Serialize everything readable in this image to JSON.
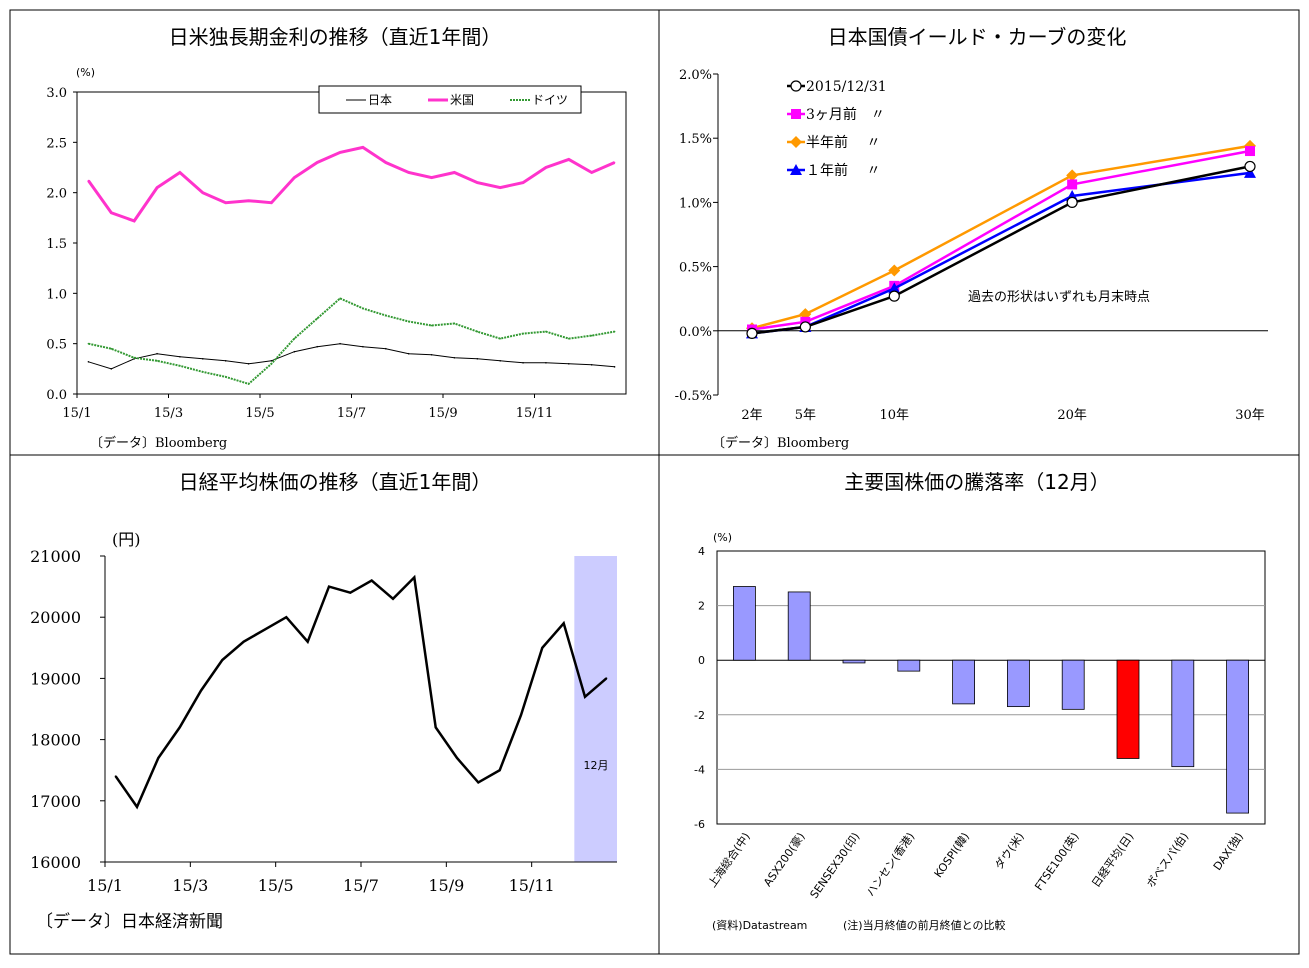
{
  "chart_data": [
    {
      "type": "line",
      "title": "日米独長期金利の推移（直近1年間）",
      "unit": "(%)",
      "source": "〔データ〕Bloomberg",
      "x_ticks": [
        "15/1",
        "15/3",
        "15/5",
        "15/7",
        "15/9",
        "15/11"
      ],
      "y_ticks": [
        "3.0",
        "2.5",
        "2.0",
        "1.5",
        "1.0",
        "0.5",
        "0.0"
      ],
      "ylim": [
        0,
        3.0
      ],
      "legend_position": "top-right",
      "series": [
        {
          "name": "日本",
          "color": "#000000",
          "x": [
            "15/1",
            "15/1",
            "15/2",
            "15/2",
            "15/3",
            "15/3",
            "15/4",
            "15/4",
            "15/5",
            "15/5",
            "15/6",
            "15/6",
            "15/7",
            "15/7",
            "15/8",
            "15/8",
            "15/9",
            "15/9",
            "15/10",
            "15/10",
            "15/11",
            "15/11",
            "15/12",
            "15/12"
          ],
          "values": [
            0.32,
            0.25,
            0.35,
            0.4,
            0.37,
            0.35,
            0.33,
            0.3,
            0.33,
            0.42,
            0.47,
            0.5,
            0.47,
            0.45,
            0.4,
            0.39,
            0.36,
            0.35,
            0.33,
            0.31,
            0.31,
            0.3,
            0.29,
            0.27
          ]
        },
        {
          "name": "米国",
          "color": "#ff33cc",
          "x": [
            "15/1",
            "15/1",
            "15/2",
            "15/2",
            "15/3",
            "15/3",
            "15/4",
            "15/4",
            "15/5",
            "15/5",
            "15/6",
            "15/6",
            "15/7",
            "15/7",
            "15/8",
            "15/8",
            "15/9",
            "15/9",
            "15/10",
            "15/10",
            "15/11",
            "15/11",
            "15/12",
            "15/12"
          ],
          "values": [
            2.12,
            1.8,
            1.72,
            2.05,
            2.2,
            2.0,
            1.9,
            1.92,
            1.9,
            2.15,
            2.3,
            2.4,
            2.45,
            2.3,
            2.2,
            2.15,
            2.2,
            2.1,
            2.05,
            2.1,
            2.25,
            2.33,
            2.2,
            2.3
          ]
        },
        {
          "name": "ドイツ",
          "color": "#339933",
          "x": [
            "15/1",
            "15/1",
            "15/2",
            "15/2",
            "15/3",
            "15/3",
            "15/4",
            "15/4",
            "15/5",
            "15/5",
            "15/6",
            "15/6",
            "15/7",
            "15/7",
            "15/8",
            "15/8",
            "15/9",
            "15/9",
            "15/10",
            "15/10",
            "15/11",
            "15/11",
            "15/12",
            "15/12"
          ],
          "values": [
            0.5,
            0.45,
            0.36,
            0.33,
            0.28,
            0.22,
            0.17,
            0.1,
            0.3,
            0.55,
            0.75,
            0.95,
            0.85,
            0.78,
            0.72,
            0.68,
            0.7,
            0.62,
            0.55,
            0.6,
            0.62,
            0.55,
            0.58,
            0.62
          ]
        }
      ]
    },
    {
      "type": "line",
      "title": "日本国債イールド・カーブの変化",
      "source": "〔データ〕Bloomberg",
      "categories": [
        "2年",
        "5年",
        "10年",
        "20年",
        "30年"
      ],
      "maturities": [
        2,
        5,
        10,
        20,
        30
      ],
      "y_ticks": [
        "2.0%",
        "1.5%",
        "1.0%",
        "0.5%",
        "0.0%",
        "-0.5%"
      ],
      "ylim": [
        -0.5,
        2.0
      ],
      "annotation": "過去の形状はいずれも月末時点",
      "legend_position": "top-left",
      "series": [
        {
          "name": "2015/12/31",
          "color": "#000000",
          "marker": "circle",
          "values": [
            -0.02,
            0.03,
            0.27,
            1.0,
            1.28
          ]
        },
        {
          "name": "3ヶ月前　〃",
          "color": "#ff00ff",
          "marker": "square",
          "values": [
            0.01,
            0.07,
            0.35,
            1.14,
            1.4
          ]
        },
        {
          "name": "半年前　 〃",
          "color": "#ff9900",
          "marker": "diamond",
          "values": [
            0.02,
            0.13,
            0.47,
            1.21,
            1.44
          ]
        },
        {
          "name": "１年前　 〃",
          "color": "#0000ff",
          "marker": "triangle",
          "values": [
            -0.02,
            0.03,
            0.33,
            1.05,
            1.23
          ]
        }
      ]
    },
    {
      "type": "line",
      "title": "日経平均株価の推移（直近1年間）",
      "unit": "(円)",
      "source": "〔データ〕日本経済新聞",
      "x_ticks": [
        "15/1",
        "15/3",
        "15/5",
        "15/7",
        "15/9",
        "15/11"
      ],
      "y_ticks": [
        "21000",
        "20000",
        "19000",
        "18000",
        "17000",
        "16000"
      ],
      "ylim": [
        16000,
        21000
      ],
      "highlight_label": "12月",
      "series": [
        {
          "name": "日経平均",
          "color": "#000000",
          "x": [
            "15/1",
            "15/1",
            "15/2",
            "15/2",
            "15/3",
            "15/3",
            "15/4",
            "15/4",
            "15/5",
            "15/5",
            "15/6",
            "15/6",
            "15/7",
            "15/7",
            "15/8",
            "15/8",
            "15/9",
            "15/9",
            "15/10",
            "15/10",
            "15/11",
            "15/11",
            "15/12",
            "15/12"
          ],
          "values": [
            17400,
            16900,
            17700,
            18200,
            18800,
            19300,
            19600,
            19800,
            20000,
            19600,
            20500,
            20400,
            20600,
            20300,
            20650,
            18200,
            17700,
            17300,
            17500,
            18400,
            19500,
            19900,
            18700,
            19000
          ]
        }
      ]
    },
    {
      "type": "bar",
      "title": "主要国株価の騰落率（12月）",
      "unit": "(%)",
      "source": "(資料)Datastream",
      "note": "(注)当月終値の前月終値との比較",
      "categories": [
        "上海総合(中)",
        "ASX200(豪)",
        "SENSEX30(印)",
        "ハンセン(香港)",
        "KOSPI(韓)",
        "ダウ(米)",
        "FTSE100(英)",
        "日経平均(日)",
        "ボベスパ(伯)",
        "DAX(独)"
      ],
      "values": [
        2.7,
        2.5,
        -0.1,
        -0.4,
        -1.6,
        -1.7,
        -1.8,
        -3.6,
        -3.9,
        -5.6
      ],
      "colors": [
        "#9999ff",
        "#9999ff",
        "#9999ff",
        "#9999ff",
        "#9999ff",
        "#9999ff",
        "#9999ff",
        "#ff0000",
        "#9999ff",
        "#9999ff"
      ],
      "y_ticks": [
        "4",
        "2",
        "0",
        "-2",
        "-4",
        "-6"
      ],
      "ylim": [
        -6,
        4
      ]
    }
  ]
}
